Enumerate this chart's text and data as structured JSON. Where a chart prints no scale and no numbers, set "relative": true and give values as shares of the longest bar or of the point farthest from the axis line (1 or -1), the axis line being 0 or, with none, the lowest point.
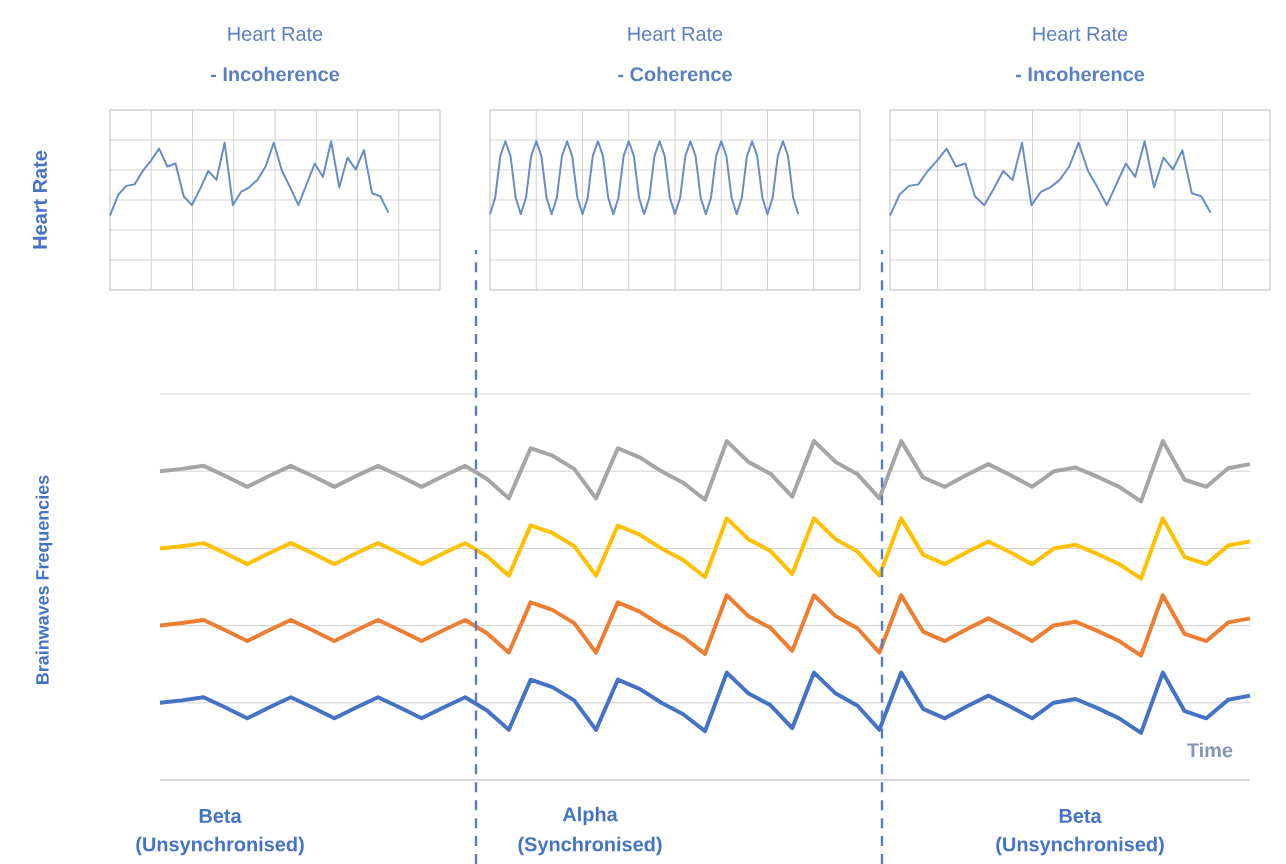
{
  "chart_data": [
    {
      "type": "line",
      "title": "Heart Rate",
      "subtitle": "- Incoherence",
      "ylabel": "Heart Rate",
      "relative": true,
      "grid": true,
      "marker": "none",
      "line_style": "solid",
      "color": "#6a8cc4",
      "categories": [
        null,
        null,
        null,
        null,
        null,
        null,
        null,
        null,
        null,
        null,
        null,
        null,
        null,
        null,
        null,
        null,
        null,
        null,
        null,
        null,
        null,
        null,
        null,
        null,
        null,
        null,
        null,
        null,
        null,
        null,
        null,
        null,
        null,
        null,
        null
      ],
      "values": [
        0.5,
        0.64,
        0.7,
        0.71,
        0.8,
        0.87,
        0.95,
        0.83,
        0.85,
        0.63,
        0.57,
        0.68,
        0.8,
        0.74,
        0.99,
        0.57,
        0.66,
        0.69,
        0.74,
        0.83,
        0.99,
        0.8,
        0.69,
        0.57,
        0.71,
        0.85,
        0.76,
        1.0,
        0.69,
        0.89,
        0.81,
        0.94,
        0.65,
        0.63,
        0.52
      ]
    },
    {
      "type": "line",
      "title": "Heart Rate",
      "subtitle": "- Coherence",
      "relative": true,
      "grid": true,
      "marker": "none",
      "line_style": "solid",
      "color": "#6a8cc4",
      "categories": [
        null,
        null,
        null,
        null,
        null,
        null,
        null,
        null,
        null,
        null,
        null,
        null,
        null,
        null,
        null,
        null,
        null,
        null,
        null,
        null,
        null,
        null,
        null,
        null,
        null,
        null,
        null,
        null,
        null,
        null,
        null,
        null,
        null,
        null,
        null,
        null,
        null,
        null,
        null,
        null,
        null,
        null,
        null,
        null,
        null,
        null,
        null,
        null,
        null,
        null,
        null,
        null,
        null,
        null,
        null,
        null,
        null,
        null,
        null,
        null,
        null
      ],
      "values": [
        0.51,
        0.62,
        0.9,
        1,
        0.9,
        0.62,
        0.51,
        0.62,
        0.9,
        1,
        0.9,
        0.62,
        0.51,
        0.62,
        0.9,
        1,
        0.9,
        0.62,
        0.51,
        0.62,
        0.9,
        1,
        0.9,
        0.62,
        0.51,
        0.62,
        0.9,
        1,
        0.9,
        0.62,
        0.51,
        0.62,
        0.9,
        1,
        0.9,
        0.62,
        0.51,
        0.62,
        0.9,
        1,
        0.9,
        0.62,
        0.51,
        0.62,
        0.9,
        1,
        0.9,
        0.62,
        0.51,
        0.62,
        0.9,
        1,
        0.9,
        0.62,
        0.51,
        0.62,
        0.9,
        1,
        0.9,
        0.62,
        0.51
      ]
    },
    {
      "type": "line",
      "title": "Heart Rate",
      "subtitle": "- Incoherence",
      "relative": true,
      "grid": true,
      "marker": "none",
      "line_style": "solid",
      "color": "#6a8cc4",
      "categories": [
        null,
        null,
        null,
        null,
        null,
        null,
        null,
        null,
        null,
        null,
        null,
        null,
        null,
        null,
        null,
        null,
        null,
        null,
        null,
        null,
        null,
        null,
        null,
        null,
        null,
        null,
        null,
        null,
        null,
        null,
        null,
        null,
        null,
        null,
        null
      ],
      "values": [
        0.5,
        0.64,
        0.7,
        0.71,
        0.8,
        0.87,
        0.95,
        0.83,
        0.85,
        0.63,
        0.57,
        0.68,
        0.8,
        0.74,
        0.99,
        0.57,
        0.66,
        0.69,
        0.74,
        0.83,
        0.99,
        0.8,
        0.69,
        0.57,
        0.71,
        0.85,
        0.76,
        1.0,
        0.69,
        0.89,
        0.81,
        0.94,
        0.65,
        0.63,
        0.52
      ]
    },
    {
      "type": "line",
      "ylabel": "Brainwaves Frequencies",
      "xlabel": "Time",
      "relative": true,
      "grid": "y",
      "marker": "none",
      "line_style": "solid",
      "categories": [
        null,
        null,
        null,
        null,
        null,
        null,
        null,
        null,
        null,
        null,
        null,
        null,
        null,
        null,
        null,
        null,
        null,
        null,
        null,
        null,
        null,
        null,
        null,
        null,
        null,
        null,
        null,
        null,
        null,
        null,
        null,
        null,
        null,
        null,
        null,
        null,
        null,
        null,
        null,
        null,
        null,
        null,
        null,
        null,
        null,
        null,
        null,
        null,
        null,
        null,
        null
      ],
      "series": [
        {
          "color": "#a5a5a5",
          "values": [
            0.911,
            0.918,
            0.927,
            0.897,
            0.865,
            0.897,
            0.927,
            0.897,
            0.865,
            0.897,
            0.927,
            0.897,
            0.865,
            0.897,
            0.927,
            0.888,
            0.831,
            0.979,
            0.957,
            0.918,
            0.831,
            0.979,
            0.952,
            0.911,
            0.877,
            0.827,
            1.0,
            0.938,
            0.904,
            0.836,
            1.0,
            0.938,
            0.902,
            0.831,
            1.0,
            0.893,
            0.865,
            0.9,
            0.932,
            0.9,
            0.865,
            0.911,
            0.922,
            0.895,
            0.865,
            0.822,
            1.0,
            0.886,
            0.865,
            0.92,
            0.932
          ]
        },
        {
          "color": "#ffc000",
          "values": [
            0.683,
            0.69,
            0.699,
            0.669,
            0.637,
            0.669,
            0.699,
            0.669,
            0.637,
            0.669,
            0.699,
            0.669,
            0.637,
            0.669,
            0.699,
            0.66,
            0.603,
            0.751,
            0.729,
            0.69,
            0.603,
            0.751,
            0.724,
            0.683,
            0.649,
            0.599,
            0.772,
            0.71,
            0.676,
            0.608,
            0.772,
            0.71,
            0.674,
            0.603,
            0.772,
            0.665,
            0.637,
            0.672,
            0.704,
            0.672,
            0.637,
            0.683,
            0.694,
            0.667,
            0.637,
            0.594,
            0.772,
            0.658,
            0.637,
            0.692,
            0.704
          ]
        },
        {
          "color": "#ed7d31",
          "values": [
            0.456,
            0.463,
            0.472,
            0.442,
            0.41,
            0.442,
            0.472,
            0.442,
            0.41,
            0.442,
            0.472,
            0.442,
            0.41,
            0.442,
            0.472,
            0.433,
            0.376,
            0.524,
            0.502,
            0.463,
            0.376,
            0.524,
            0.497,
            0.456,
            0.422,
            0.372,
            0.545,
            0.483,
            0.449,
            0.381,
            0.545,
            0.483,
            0.447,
            0.376,
            0.545,
            0.438,
            0.41,
            0.445,
            0.477,
            0.445,
            0.41,
            0.456,
            0.467,
            0.44,
            0.41,
            0.367,
            0.545,
            0.431,
            0.41,
            0.465,
            0.477
          ]
        },
        {
          "color": "#4472c4",
          "values": [
            0.228,
            0.235,
            0.244,
            0.214,
            0.182,
            0.214,
            0.244,
            0.214,
            0.182,
            0.214,
            0.244,
            0.214,
            0.182,
            0.214,
            0.244,
            0.205,
            0.148,
            0.296,
            0.274,
            0.235,
            0.148,
            0.296,
            0.269,
            0.228,
            0.194,
            0.144,
            0.317,
            0.255,
            0.221,
            0.153,
            0.317,
            0.255,
            0.219,
            0.148,
            0.317,
            0.21,
            0.182,
            0.217,
            0.249,
            0.217,
            0.182,
            0.228,
            0.239,
            0.212,
            0.182,
            0.139,
            0.317,
            0.203,
            0.182,
            0.237,
            0.249
          ]
        }
      ],
      "annotations": [
        "Beta",
        "(Unsynchronised)",
        "Alpha",
        "(Synchronised)",
        "Beta",
        "(Unsynchronised)"
      ]
    }
  ]
}
